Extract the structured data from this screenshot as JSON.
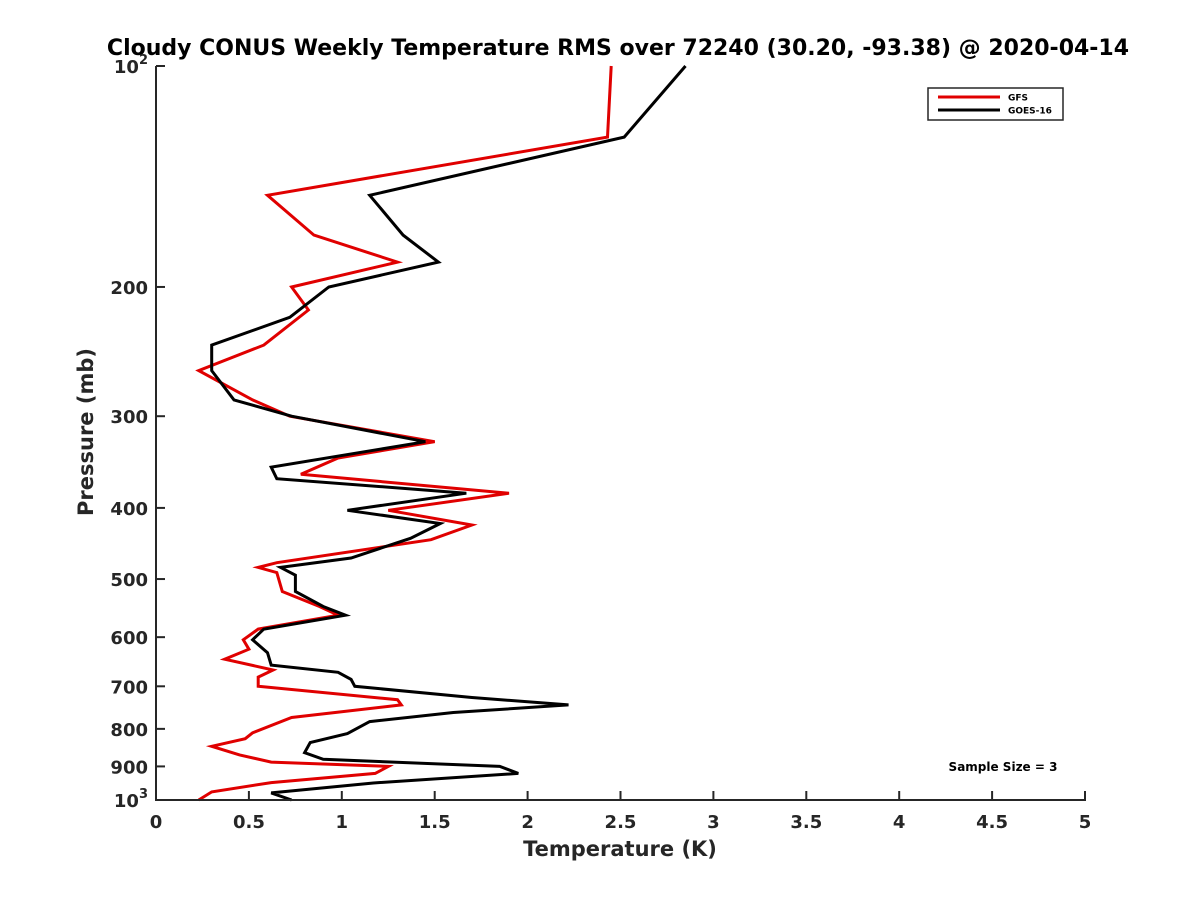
{
  "chart_data": {
    "type": "line",
    "title": "Cloudy CONUS Weekly Temperature RMS over 72240 (30.20, -93.38) @ 2020-04-14",
    "xlabel": "Temperature (K)",
    "ylabel": "Pressure (mb)",
    "xlim": [
      0,
      5
    ],
    "ylim": [
      100,
      1000
    ],
    "y_scale": "log",
    "y_reversed": true,
    "grid": false,
    "legend_position": "top-right",
    "x_ticks": [
      "0",
      "0.5",
      "1",
      "1.5",
      "2",
      "2.5",
      "3",
      "3.5",
      "4",
      "4.5",
      "5"
    ],
    "y_ticks": [
      {
        "value": 100,
        "base": "10",
        "exp": "2"
      },
      {
        "value": 200,
        "label": "200"
      },
      {
        "value": 300,
        "label": "300"
      },
      {
        "value": 400,
        "label": "400"
      },
      {
        "value": 500,
        "label": "500"
      },
      {
        "value": 600,
        "label": "600"
      },
      {
        "value": 700,
        "label": "700"
      },
      {
        "value": 800,
        "label": "800"
      },
      {
        "value": 900,
        "label": "900"
      },
      {
        "value": 1000,
        "base": "10",
        "exp": "3"
      }
    ],
    "annotation": "Sample Size = 3",
    "series": [
      {
        "name": "GFS",
        "color": "#e00000",
        "points": [
          [
            2.45,
            100
          ],
          [
            2.43,
            125
          ],
          [
            0.6,
            150
          ],
          [
            0.85,
            170
          ],
          [
            1.3,
            185
          ],
          [
            0.73,
            200
          ],
          [
            0.82,
            215
          ],
          [
            0.58,
            240
          ],
          [
            0.23,
            260
          ],
          [
            0.52,
            285
          ],
          [
            0.72,
            300
          ],
          [
            1.5,
            325
          ],
          [
            0.98,
            342
          ],
          [
            0.78,
            360
          ],
          [
            1.9,
            382
          ],
          [
            1.25,
            403
          ],
          [
            1.7,
            422
          ],
          [
            1.48,
            442
          ],
          [
            0.65,
            475
          ],
          [
            0.55,
            482
          ],
          [
            0.65,
            490
          ],
          [
            0.68,
            520
          ],
          [
            0.88,
            545
          ],
          [
            0.98,
            560
          ],
          [
            0.55,
            585
          ],
          [
            0.47,
            605
          ],
          [
            0.5,
            623
          ],
          [
            0.37,
            643
          ],
          [
            0.63,
            665
          ],
          [
            0.55,
            680
          ],
          [
            0.55,
            700
          ],
          [
            1.3,
            730
          ],
          [
            1.32,
            742
          ],
          [
            0.73,
            772
          ],
          [
            0.52,
            810
          ],
          [
            0.48,
            825
          ],
          [
            0.3,
            845
          ],
          [
            0.45,
            868
          ],
          [
            0.62,
            888
          ],
          [
            1.25,
            900
          ],
          [
            1.18,
            920
          ],
          [
            0.62,
            947
          ],
          [
            0.3,
            975
          ],
          [
            0.23,
            1000
          ]
        ]
      },
      {
        "name": "GOES-16",
        "color": "#000000",
        "points": [
          [
            2.85,
            100
          ],
          [
            2.52,
            125
          ],
          [
            1.15,
            150
          ],
          [
            1.33,
            170
          ],
          [
            1.52,
            185
          ],
          [
            0.93,
            200
          ],
          [
            0.72,
            220
          ],
          [
            0.3,
            240
          ],
          [
            0.3,
            260
          ],
          [
            0.42,
            285
          ],
          [
            0.73,
            300
          ],
          [
            1.45,
            325
          ],
          [
            0.62,
            352
          ],
          [
            0.65,
            365
          ],
          [
            1.67,
            382
          ],
          [
            1.03,
            403
          ],
          [
            1.53,
            420
          ],
          [
            1.37,
            440
          ],
          [
            1.05,
            468
          ],
          [
            0.67,
            482
          ],
          [
            0.75,
            494
          ],
          [
            0.75,
            520
          ],
          [
            0.9,
            545
          ],
          [
            1.02,
            560
          ],
          [
            0.58,
            585
          ],
          [
            0.52,
            605
          ],
          [
            0.6,
            630
          ],
          [
            0.62,
            655
          ],
          [
            0.98,
            670
          ],
          [
            1.05,
            685
          ],
          [
            1.07,
            700
          ],
          [
            1.7,
            725
          ],
          [
            2.22,
            742
          ],
          [
            1.6,
            760
          ],
          [
            1.15,
            782
          ],
          [
            1.03,
            812
          ],
          [
            0.83,
            835
          ],
          [
            0.8,
            862
          ],
          [
            0.9,
            880
          ],
          [
            1.85,
            900
          ],
          [
            1.95,
            920
          ],
          [
            1.17,
            948
          ],
          [
            0.62,
            978
          ],
          [
            0.73,
            1000
          ]
        ]
      }
    ]
  }
}
